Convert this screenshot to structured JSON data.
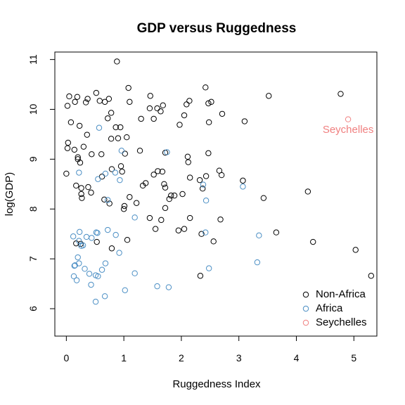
{
  "chart_data": {
    "type": "scatter",
    "title": "GDP versus Ruggedness",
    "xlabel": "Ruggedness Index",
    "ylabel": "log(GDP)",
    "xlim": [
      -0.2,
      5.4
    ],
    "ylim": [
      5.45,
      11.15
    ],
    "x_ticks": [
      0,
      1,
      2,
      3,
      4,
      5
    ],
    "y_ticks": [
      6,
      7,
      8,
      9,
      10,
      11
    ],
    "grid": false,
    "legend_position": "bottom-right",
    "colors": {
      "non_africa": "#000000",
      "africa": "#4a8ec4",
      "seychelles": "#f08080"
    },
    "series": [
      {
        "name": "Non-Africa",
        "color": "#000000",
        "points": [
          [
            0.88,
            10.96
          ],
          [
            0.05,
            10.26
          ],
          [
            0.19,
            10.25
          ],
          [
            0.34,
            10.14
          ],
          [
            0.37,
            10.21
          ],
          [
            0.52,
            10.33
          ],
          [
            0.58,
            10.17
          ],
          [
            0.67,
            10.15
          ],
          [
            0.74,
            10.21
          ],
          [
            0.02,
            10.07
          ],
          [
            0.15,
            10.15
          ],
          [
            1.08,
            10.43
          ],
          [
            1.1,
            10.15
          ],
          [
            1.46,
            10.27
          ],
          [
            1.45,
            10.02
          ],
          [
            1.58,
            10.02
          ],
          [
            1.68,
            10.08
          ],
          [
            2.09,
            10.1
          ],
          [
            2.14,
            10.17
          ],
          [
            2.42,
            10.44
          ],
          [
            2.47,
            10.12
          ],
          [
            2.52,
            10.15
          ],
          [
            3.52,
            10.27
          ],
          [
            4.77,
            10.31
          ],
          [
            0.23,
            9.67
          ],
          [
            0.08,
            9.74
          ],
          [
            0.36,
            9.49
          ],
          [
            0.78,
            9.93
          ],
          [
            0.72,
            9.82
          ],
          [
            0.86,
            9.64
          ],
          [
            0.94,
            9.64
          ],
          [
            1.05,
            9.44
          ],
          [
            1.3,
            9.81
          ],
          [
            1.52,
            9.81
          ],
          [
            1.64,
            9.96
          ],
          [
            1.97,
            9.69
          ],
          [
            2.05,
            9.88
          ],
          [
            2.48,
            9.74
          ],
          [
            2.71,
            9.91
          ],
          [
            3.1,
            9.76
          ],
          [
            0.03,
            9.33
          ],
          [
            0.02,
            9.22
          ],
          [
            0.14,
            9.19
          ],
          [
            0.2,
            9.04
          ],
          [
            0.3,
            9.25
          ],
          [
            0.44,
            9.1
          ],
          [
            0.61,
            9.1
          ],
          [
            0.78,
            9.41
          ],
          [
            0.9,
            9.42
          ],
          [
            1.02,
            9.11
          ],
          [
            1.28,
            9.17
          ],
          [
            1.72,
            9.13
          ],
          [
            2.12,
            8.94
          ],
          [
            2.11,
            9.05
          ],
          [
            2.47,
            9.12
          ],
          [
            0.0,
            8.71
          ],
          [
            0.17,
            8.47
          ],
          [
            0.26,
            8.42
          ],
          [
            0.26,
            8.3
          ],
          [
            0.27,
            8.22
          ],
          [
            0.38,
            8.44
          ],
          [
            0.43,
            8.33
          ],
          [
            0.62,
            8.65
          ],
          [
            0.66,
            8.19
          ],
          [
            0.75,
            8.11
          ],
          [
            0.79,
            8.8
          ],
          [
            0.95,
            8.86
          ],
          [
            0.97,
            8.75
          ],
          [
            1.01,
            8.06
          ],
          [
            1.0,
            8.0
          ],
          [
            1.1,
            8.24
          ],
          [
            1.33,
            8.47
          ],
          [
            1.38,
            8.52
          ],
          [
            1.52,
            8.69
          ],
          [
            1.59,
            8.76
          ],
          [
            1.67,
            8.75
          ],
          [
            1.7,
            8.5
          ],
          [
            1.72,
            8.43
          ],
          [
            1.79,
            8.2
          ],
          [
            1.82,
            8.27
          ],
          [
            1.88,
            8.27
          ],
          [
            2.02,
            8.3
          ],
          [
            2.15,
            8.63
          ],
          [
            2.32,
            8.58
          ],
          [
            2.37,
            8.41
          ],
          [
            2.43,
            8.66
          ],
          [
            2.66,
            8.77
          ],
          [
            2.7,
            8.68
          ],
          [
            3.07,
            8.57
          ],
          [
            3.43,
            8.22
          ],
          [
            4.2,
            8.35
          ],
          [
            0.2,
            9.0
          ],
          [
            0.24,
            8.93
          ],
          [
            1.22,
            8.12
          ],
          [
            1.72,
            8.02
          ],
          [
            1.45,
            7.82
          ],
          [
            1.55,
            7.6
          ],
          [
            1.65,
            7.78
          ],
          [
            1.95,
            7.57
          ],
          [
            2.05,
            7.6
          ],
          [
            2.15,
            7.82
          ],
          [
            2.35,
            7.5
          ],
          [
            2.68,
            7.79
          ],
          [
            2.56,
            7.35
          ],
          [
            3.65,
            7.53
          ],
          [
            4.29,
            7.34
          ],
          [
            0.53,
            7.34
          ],
          [
            0.79,
            7.21
          ],
          [
            1.06,
            7.38
          ],
          [
            5.03,
            7.18
          ],
          [
            5.3,
            6.66
          ],
          [
            2.33,
            6.66
          ],
          [
            0.17,
            7.31
          ],
          [
            0.25,
            7.3
          ]
        ]
      },
      {
        "name": "Africa",
        "color": "#4a8ec4",
        "points": [
          [
            0.57,
            9.63
          ],
          [
            0.96,
            9.17
          ],
          [
            1.75,
            9.14
          ],
          [
            0.22,
            8.73
          ],
          [
            0.68,
            8.71
          ],
          [
            0.85,
            8.73
          ],
          [
            0.55,
            8.6
          ],
          [
            0.93,
            8.58
          ],
          [
            0.72,
            8.18
          ],
          [
            2.38,
            8.49
          ],
          [
            3.07,
            8.45
          ],
          [
            2.43,
            8.17
          ],
          [
            0.12,
            7.45
          ],
          [
            0.23,
            7.54
          ],
          [
            0.35,
            7.44
          ],
          [
            0.44,
            7.42
          ],
          [
            0.52,
            7.53
          ],
          [
            0.54,
            7.52
          ],
          [
            0.72,
            7.58
          ],
          [
            0.86,
            7.48
          ],
          [
            1.19,
            7.83
          ],
          [
            0.22,
            7.36
          ],
          [
            0.29,
            7.27
          ],
          [
            0.26,
            7.26
          ],
          [
            0.2,
            7.03
          ],
          [
            0.22,
            6.91
          ],
          [
            0.15,
            6.87
          ],
          [
            0.14,
            6.86
          ],
          [
            0.32,
            6.8
          ],
          [
            0.4,
            6.7
          ],
          [
            0.51,
            6.67
          ],
          [
            0.55,
            6.65
          ],
          [
            0.62,
            6.78
          ],
          [
            0.68,
            6.91
          ],
          [
            0.92,
            7.12
          ],
          [
            2.42,
            7.53
          ],
          [
            3.35,
            7.47
          ],
          [
            3.32,
            6.93
          ],
          [
            2.48,
            6.81
          ],
          [
            0.13,
            6.65
          ],
          [
            0.18,
            6.57
          ],
          [
            0.43,
            6.48
          ],
          [
            0.67,
            6.25
          ],
          [
            0.51,
            6.14
          ],
          [
            1.02,
            6.37
          ],
          [
            1.19,
            6.71
          ],
          [
            1.58,
            6.45
          ],
          [
            1.78,
            6.43
          ]
        ]
      },
      {
        "name": "Seychelles",
        "color": "#f08080",
        "points": [
          [
            4.9,
            9.8
          ]
        ]
      }
    ],
    "annotations": [
      {
        "text": "Seychelles",
        "x": 4.9,
        "y": 9.58,
        "color": "#f08080"
      }
    ],
    "legend": [
      "Non-Africa",
      "Africa",
      "Seychelles"
    ]
  }
}
